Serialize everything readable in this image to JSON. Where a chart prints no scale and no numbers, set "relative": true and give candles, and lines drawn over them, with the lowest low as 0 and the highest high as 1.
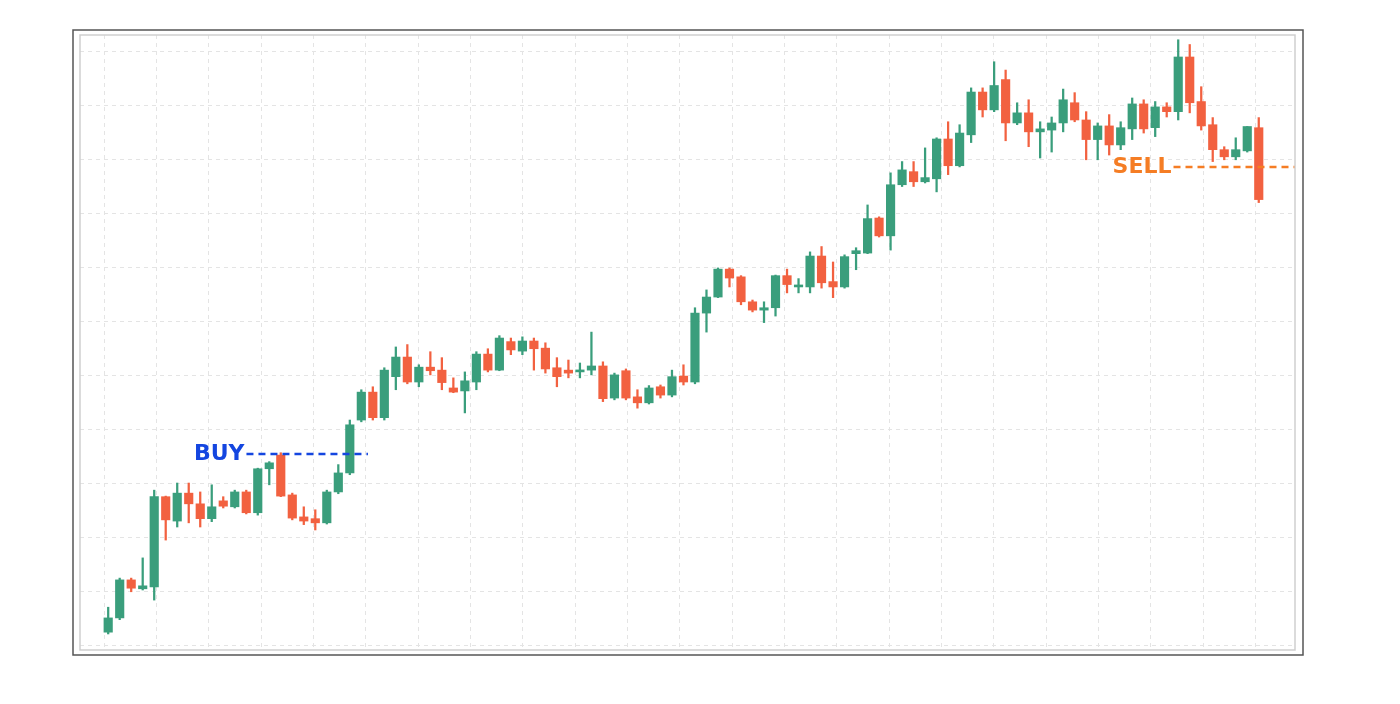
{
  "chart_data": {
    "type": "candlestick",
    "relative": true,
    "grid": true,
    "legend": false,
    "categories": [
      null,
      null,
      null,
      null,
      null,
      null,
      null,
      null,
      null,
      null,
      null,
      null,
      null,
      null,
      null,
      null,
      null,
      null,
      null,
      null,
      null,
      null,
      null,
      null,
      null,
      null,
      null,
      null,
      null,
      null,
      null,
      null,
      null,
      null,
      null,
      null,
      null,
      null,
      null,
      null,
      null,
      null,
      null,
      null,
      null,
      null,
      null,
      null,
      null,
      null,
      null,
      null,
      null,
      null,
      null,
      null,
      null,
      null,
      null,
      null,
      null,
      null,
      null,
      null,
      null,
      null,
      null,
      null,
      null,
      null,
      null,
      null,
      null,
      null,
      null,
      null,
      null,
      null,
      null,
      null,
      null,
      null,
      null,
      null,
      null,
      null,
      null,
      null,
      null,
      null,
      null,
      null,
      null,
      null,
      null,
      null,
      null,
      null,
      null,
      null,
      null
    ],
    "ohlc": [
      [
        0.003,
        0.045,
        0,
        0.027
      ],
      [
        0.027,
        0.094,
        0.024,
        0.091
      ],
      [
        0.091,
        0.094,
        0.071,
        0.077
      ],
      [
        0.076,
        0.128,
        0.074,
        0.081
      ],
      [
        0.079,
        0.242,
        0.057,
        0.231
      ],
      [
        0.231,
        0.232,
        0.158,
        0.192
      ],
      [
        0.19,
        0.254,
        0.18,
        0.237
      ],
      [
        0.237,
        0.254,
        0.187,
        0.219
      ],
      [
        0.219,
        0.239,
        0.18,
        0.194
      ],
      [
        0.194,
        0.251,
        0.189,
        0.214
      ],
      [
        0.224,
        0.231,
        0.212,
        0.215
      ],
      [
        0.214,
        0.242,
        0.212,
        0.239
      ],
      [
        0.239,
        0.242,
        0.202,
        0.204
      ],
      [
        0.204,
        0.279,
        0.2,
        0.278
      ],
      [
        0.278,
        0.29,
        0.251,
        0.288
      ],
      [
        0.301,
        0.305,
        0.231,
        0.232
      ],
      [
        0.234,
        0.237,
        0.192,
        0.195
      ],
      [
        0.197,
        0.214,
        0.184,
        0.19
      ],
      [
        0.194,
        0.209,
        0.175,
        0.187
      ],
      [
        0.187,
        0.242,
        0.185,
        0.239
      ],
      [
        0.239,
        0.285,
        0.236,
        0.271
      ],
      [
        0.271,
        0.36,
        0.268,
        0.352
      ],
      [
        0.36,
        0.411,
        0.357,
        0.407
      ],
      [
        0.407,
        0.416,
        0.36,
        0.364
      ],
      [
        0.364,
        0.448,
        0.36,
        0.444
      ],
      [
        0.433,
        0.483,
        0.411,
        0.466
      ],
      [
        0.466,
        0.487,
        0.421,
        0.424
      ],
      [
        0.424,
        0.453,
        0.416,
        0.449
      ],
      [
        0.449,
        0.475,
        0.436,
        0.443
      ],
      [
        0.444,
        0.465,
        0.411,
        0.423
      ],
      [
        0.414,
        0.431,
        0.406,
        0.407
      ],
      [
        0.409,
        0.441,
        0.372,
        0.426
      ],
      [
        0.424,
        0.475,
        0.411,
        0.471
      ],
      [
        0.471,
        0.48,
        0.441,
        0.444
      ],
      [
        0.444,
        0.502,
        0.443,
        0.498
      ],
      [
        0.492,
        0.498,
        0.47,
        0.478
      ],
      [
        0.476,
        0.5,
        0.47,
        0.493
      ],
      [
        0.493,
        0.498,
        0.444,
        0.48
      ],
      [
        0.481,
        0.49,
        0.439,
        0.446
      ],
      [
        0.448,
        0.465,
        0.416,
        0.433
      ],
      [
        0.444,
        0.461,
        0.431,
        0.439
      ],
      [
        0.441,
        0.456,
        0.431,
        0.444
      ],
      [
        0.444,
        0.508,
        0.436,
        0.451
      ],
      [
        0.451,
        0.458,
        0.391,
        0.396
      ],
      [
        0.397,
        0.439,
        0.394,
        0.436
      ],
      [
        0.443,
        0.446,
        0.394,
        0.397
      ],
      [
        0.399,
        0.411,
        0.38,
        0.389
      ],
      [
        0.389,
        0.418,
        0.387,
        0.414
      ],
      [
        0.416,
        0.419,
        0.397,
        0.402
      ],
      [
        0.402,
        0.444,
        0.399,
        0.433
      ],
      [
        0.434,
        0.453,
        0.419,
        0.424
      ],
      [
        0.424,
        0.549,
        0.421,
        0.54
      ],
      [
        0.54,
        0.579,
        0.508,
        0.567
      ],
      [
        0.567,
        0.616,
        0.566,
        0.614
      ],
      [
        0.614,
        0.616,
        0.584,
        0.599
      ],
      [
        0.601,
        0.603,
        0.554,
        0.559
      ],
      [
        0.559,
        0.562,
        0.542,
        0.545
      ],
      [
        0.545,
        0.559,
        0.524,
        0.549
      ],
      [
        0.549,
        0.604,
        0.535,
        0.603
      ],
      [
        0.603,
        0.614,
        0.574,
        0.588
      ],
      [
        0.584,
        0.598,
        0.574,
        0.586
      ],
      [
        0.584,
        0.643,
        0.574,
        0.636
      ],
      [
        0.636,
        0.652,
        0.582,
        0.591
      ],
      [
        0.593,
        0.626,
        0.566,
        0.584
      ],
      [
        0.584,
        0.638,
        0.582,
        0.635
      ],
      [
        0.64,
        0.65,
        0.613,
        0.645
      ],
      [
        0.641,
        0.722,
        0.64,
        0.699
      ],
      [
        0.7,
        0.702,
        0.668,
        0.67
      ],
      [
        0.67,
        0.776,
        0.646,
        0.756
      ],
      [
        0.756,
        0.795,
        0.753,
        0.781
      ],
      [
        0.778,
        0.795,
        0.753,
        0.761
      ],
      [
        0.761,
        0.818,
        0.759,
        0.768
      ],
      [
        0.766,
        0.835,
        0.744,
        0.833
      ],
      [
        0.833,
        0.862,
        0.773,
        0.788
      ],
      [
        0.788,
        0.857,
        0.786,
        0.843
      ],
      [
        0.84,
        0.919,
        0.827,
        0.912
      ],
      [
        0.912,
        0.919,
        0.87,
        0.882
      ],
      [
        0.882,
        0.963,
        0.879,
        0.923
      ],
      [
        0.933,
        0.949,
        0.83,
        0.86
      ],
      [
        0.86,
        0.894,
        0.857,
        0.877
      ],
      [
        0.877,
        0.899,
        0.82,
        0.845
      ],
      [
        0.845,
        0.862,
        0.801,
        0.85
      ],
      [
        0.848,
        0.87,
        0.811,
        0.86
      ],
      [
        0.86,
        0.917,
        0.845,
        0.899
      ],
      [
        0.894,
        0.911,
        0.862,
        0.865
      ],
      [
        0.865,
        0.879,
        0.798,
        0.832
      ],
      [
        0.832,
        0.86,
        0.798,
        0.855
      ],
      [
        0.855,
        0.874,
        0.806,
        0.823
      ],
      [
        0.823,
        0.862,
        0.815,
        0.852
      ],
      [
        0.85,
        0.902,
        0.832,
        0.892
      ],
      [
        0.892,
        0.899,
        0.843,
        0.85
      ],
      [
        0.852,
        0.896,
        0.837,
        0.887
      ],
      [
        0.887,
        0.894,
        0.87,
        0.879
      ],
      [
        0.879,
        1,
        0.865,
        0.971
      ],
      [
        0.971,
        0.992,
        0.877,
        0.894
      ],
      [
        0.896,
        0.921,
        0.848,
        0.855
      ],
      [
        0.857,
        0.869,
        0.795,
        0.815
      ],
      [
        0.815,
        0.82,
        0.798,
        0.803
      ],
      [
        0.803,
        0.835,
        0.798,
        0.815
      ],
      [
        0.813,
        0.854,
        0.811,
        0.854
      ],
      [
        0.852,
        0.869,
        0.726,
        0.731
      ]
    ],
    "colors": [
      "#3a9e7c",
      "#3a9e7c",
      "#f26140",
      "#3a9e7c",
      "#3a9e7c",
      "#f26140",
      "#3a9e7c",
      "#f26140",
      "#f26140",
      "#3a9e7c",
      "#f26140",
      "#3a9e7c",
      "#f26140",
      "#3a9e7c",
      "#3a9e7c",
      "#f26140",
      "#f26140",
      "#f26140",
      "#f26140",
      "#3a9e7c",
      "#3a9e7c",
      "#3a9e7c",
      "#3a9e7c",
      "#f26140",
      "#3a9e7c",
      "#3a9e7c",
      "#f26140",
      "#3a9e7c",
      "#f26140",
      "#f26140",
      "#f26140",
      "#3a9e7c",
      "#3a9e7c",
      "#f26140",
      "#3a9e7c",
      "#f26140",
      "#3a9e7c",
      "#f26140",
      "#f26140",
      "#f26140",
      "#f26140",
      "#3a9e7c",
      "#3a9e7c",
      "#f26140",
      "#3a9e7c",
      "#f26140",
      "#f26140",
      "#3a9e7c",
      "#f26140",
      "#3a9e7c",
      "#f26140",
      "#3a9e7c",
      "#3a9e7c",
      "#3a9e7c",
      "#f26140",
      "#f26140",
      "#f26140",
      "#3a9e7c",
      "#3a9e7c",
      "#f26140",
      "#3a9e7c",
      "#3a9e7c",
      "#f26140",
      "#f26140",
      "#3a9e7c",
      "#3a9e7c",
      "#3a9e7c",
      "#f26140",
      "#3a9e7c",
      "#3a9e7c",
      "#f26140",
      "#3a9e7c",
      "#3a9e7c",
      "#f26140",
      "#3a9e7c",
      "#3a9e7c",
      "#f26140",
      "#3a9e7c",
      "#f26140",
      "#3a9e7c",
      "#f26140",
      "#3a9e7c",
      "#3a9e7c",
      "#3a9e7c",
      "#f26140",
      "#f26140",
      "#3a9e7c",
      "#f26140",
      "#3a9e7c",
      "#3a9e7c",
      "#f26140",
      "#3a9e7c",
      "#f26140",
      "#3a9e7c",
      "#f26140",
      "#f26140",
      "#f26140",
      "#f26140",
      "#3a9e7c",
      "#3a9e7c",
      "#f26140"
    ],
    "ref_lines": [
      {
        "axis": "y",
        "value": 0.303,
        "label": "BUY",
        "color": "#1446e0",
        "line_style": "dashed"
      },
      {
        "axis": "y",
        "value": 0.786,
        "label": "SELL",
        "color": "#f57d24",
        "line_style": "dashed"
      }
    ]
  }
}
